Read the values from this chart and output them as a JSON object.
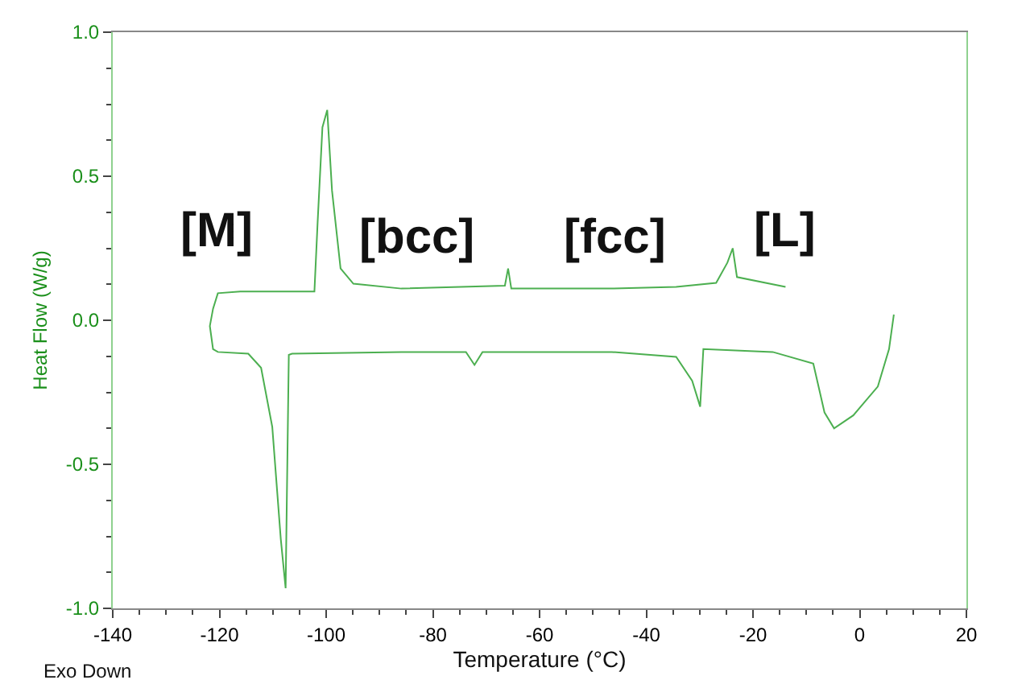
{
  "chart_data": {
    "type": "line",
    "xlabel": "Temperature (°C)",
    "ylabel": "Heat Flow (W/g)",
    "x": [
      -13.9,
      -23.0,
      -23.8,
      -24.8,
      -26.9,
      -34.4,
      -46.5,
      -61.7,
      -65.3,
      -65.9,
      -66.5,
      -85.9,
      -94.9,
      -97.3,
      -98.9,
      -99.8,
      -100.7,
      -101.6,
      -102.2,
      -116.1,
      -120.3,
      -121.2,
      -121.8,
      -121.2,
      -120.3,
      -114.6,
      -112.2,
      -110.1,
      -108.5,
      -107.6,
      -107.0,
      -106.4,
      -85.9,
      -73.8,
      -72.2,
      -70.7,
      -46.5,
      -34.4,
      -31.4,
      -29.9,
      -29.3,
      -16.3,
      -8.7,
      -6.6,
      -4.8,
      -1.2,
      3.4,
      5.5,
      6.4
    ],
    "series": [
      {
        "color": "#4caf50",
        "values": [
          0.116,
          0.15,
          0.25,
          0.2,
          0.13,
          0.116,
          0.11,
          0.11,
          0.11,
          0.18,
          0.12,
          0.11,
          0.127,
          0.18,
          0.45,
          0.73,
          0.67,
          0.34,
          0.1,
          0.1,
          0.094,
          0.04,
          -0.02,
          -0.1,
          -0.11,
          -0.116,
          -0.165,
          -0.37,
          -0.76,
          -0.93,
          -0.12,
          -0.116,
          -0.11,
          -0.11,
          -0.155,
          -0.11,
          -0.11,
          -0.127,
          -0.21,
          -0.3,
          -0.1,
          -0.11,
          -0.15,
          -0.32,
          -0.375,
          -0.33,
          -0.23,
          -0.1,
          0.02
        ]
      }
    ],
    "xlim": [
      -140,
      20
    ],
    "xticks": [
      -140,
      -120,
      -100,
      -80,
      -60,
      -40,
      -20,
      0,
      20
    ],
    "ylim": [
      -1.0,
      1.0
    ],
    "yticks": [
      {
        "value": -1.0,
        "label": "-1.0"
      },
      {
        "value": -0.5,
        "label": "-0.5"
      },
      {
        "value": 0.0,
        "label": "0.0"
      },
      {
        "value": 0.5,
        "label": "0.5"
      },
      {
        "value": 1.0,
        "label": "1.0"
      }
    ],
    "marker": "none",
    "line_style": "solid",
    "annotations": [
      "[M]",
      "[bcc]",
      "[fcc]",
      "[L]",
      "Exo Down"
    ]
  }
}
